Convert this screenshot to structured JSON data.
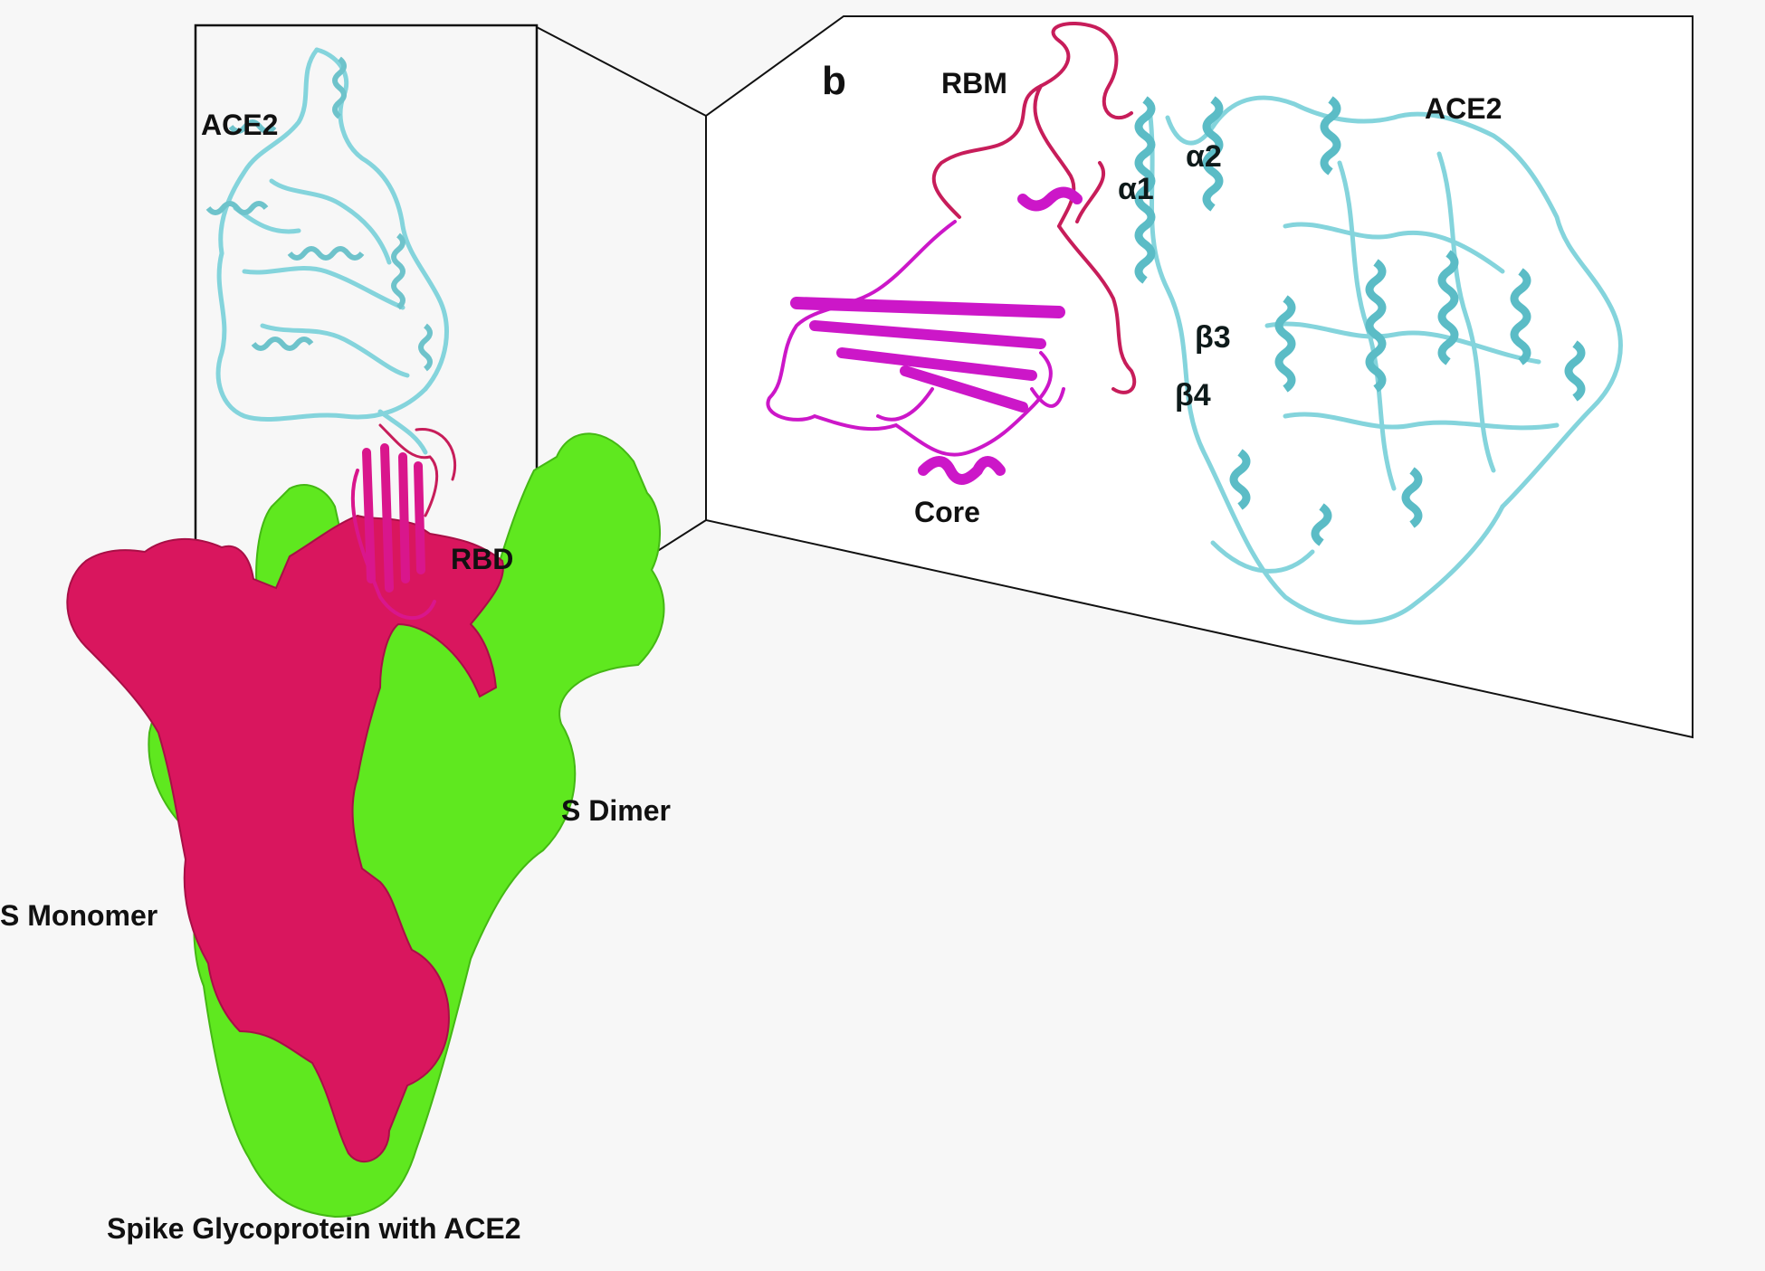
{
  "figure": {
    "panel_letter": "b",
    "caption": "Spike Glycoprotein with ACE2",
    "labels": {
      "ace2_left": "ACE2",
      "rbd": "RBD",
      "s_dimer": "S Dimer",
      "s_monomer": "S Monomer",
      "rbm": "RBM",
      "core": "Core",
      "ace2_right": "ACE2",
      "alpha1": "α1",
      "alpha2": "α2",
      "beta3": "β3",
      "beta4": "β4"
    }
  },
  "colors": {
    "ace2": "#84d4dc",
    "ace2_dark": "#5bbcc6",
    "spike_monomer": "#d9165e",
    "spike_dimer": "#5fe81f",
    "rbm": "#c71d5a",
    "core": "#cc17c8",
    "panel_border": "#111111",
    "background": "#f7f7f7"
  }
}
